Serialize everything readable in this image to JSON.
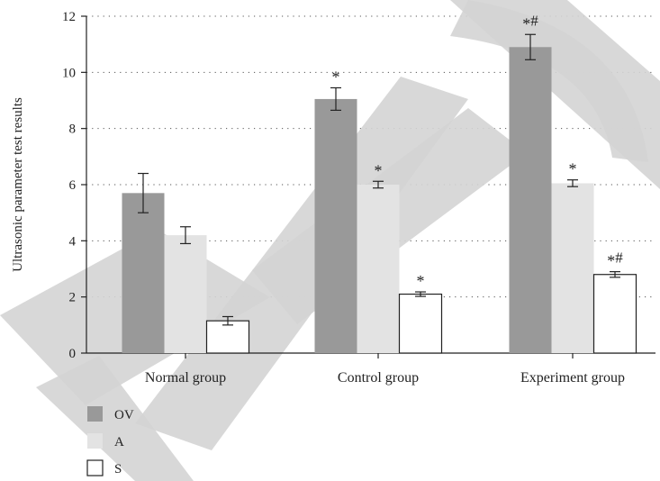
{
  "chart_data": {
    "type": "bar",
    "title": "",
    "xlabel": "",
    "ylabel": "Ultrasonic parameter test results",
    "ylim": [
      0,
      12
    ],
    "yticks": [
      0,
      2,
      4,
      6,
      8,
      10,
      12
    ],
    "grid": "dotted-horizontal",
    "legend_position": "bottom-left",
    "categories": [
      "Normal group",
      "Control group",
      "Experiment group"
    ],
    "series": [
      {
        "name": "OV",
        "color": "#999999",
        "values": [
          5.7,
          9.05,
          10.9
        ],
        "errors": [
          0.7,
          0.4,
          0.45
        ],
        "annotations": [
          "",
          "*",
          "*#"
        ]
      },
      {
        "name": "A",
        "color": "#e3e3e3",
        "values": [
          4.2,
          6.0,
          6.05
        ],
        "errors": [
          0.3,
          0.12,
          0.12
        ],
        "annotations": [
          "",
          "*",
          "*"
        ]
      },
      {
        "name": "S",
        "color": "#ffffff",
        "values": [
          1.15,
          2.1,
          2.8
        ],
        "errors": [
          0.15,
          0.08,
          0.1
        ],
        "annotations": [
          "",
          "*",
          "*#"
        ]
      }
    ]
  },
  "watermark": {
    "text": "RETRACTED",
    "color": "#d4d4d4"
  }
}
